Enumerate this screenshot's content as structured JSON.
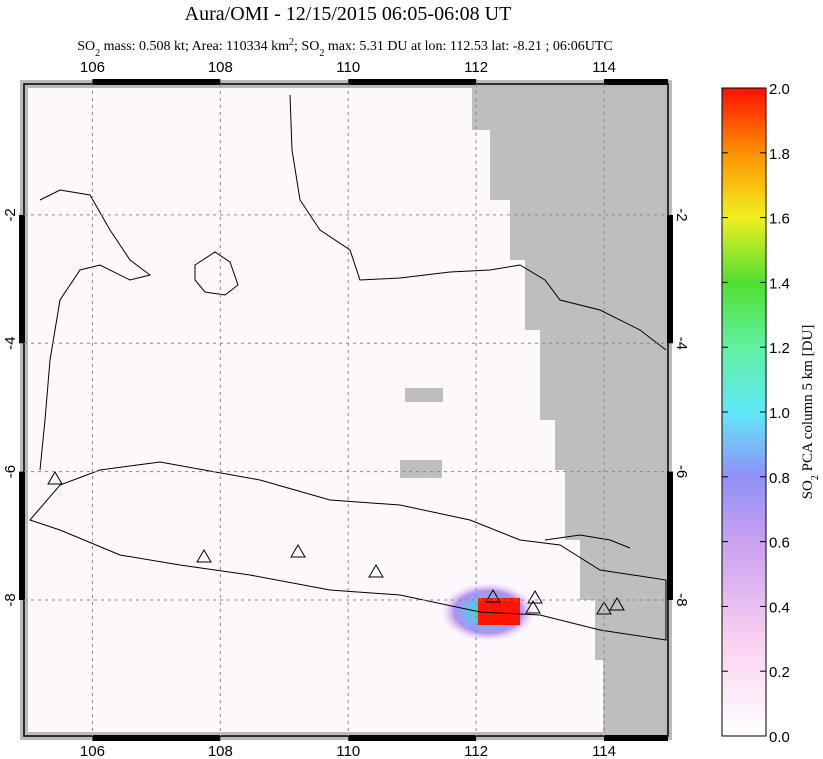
{
  "title": "Aura/OMI - 12/15/2015 06:05-06:08 UT",
  "subtitle": [
    "SO",
    "2",
    " mass: 0.508 kt; Area: 110334 km",
    "2",
    "; SO",
    "2",
    " max: 5.31 DU at lon: 112.53 lat: -8.21 ; 06:06UTC"
  ],
  "map": {
    "xlim": [
      104.93,
      115
    ],
    "ylim": [
      -10.12,
      0.04
    ],
    "xticks": [
      106,
      108,
      110,
      112,
      114
    ],
    "yticks": [
      -2,
      -4,
      -6,
      -8
    ]
  },
  "colorbar": {
    "label": [
      "SO",
      "2",
      " PCA column 5 km [DU]"
    ],
    "lim": [
      0,
      2
    ],
    "ticks": [
      {
        "value": 0,
        "label": "0.0"
      },
      0.2,
      0.4,
      0.6,
      0.8,
      {
        "value": 1,
        "label": "1.0"
      },
      1.2,
      1.4,
      1.6,
      1.8,
      {
        "value": 2,
        "label": "2.0"
      }
    ]
  }
}
